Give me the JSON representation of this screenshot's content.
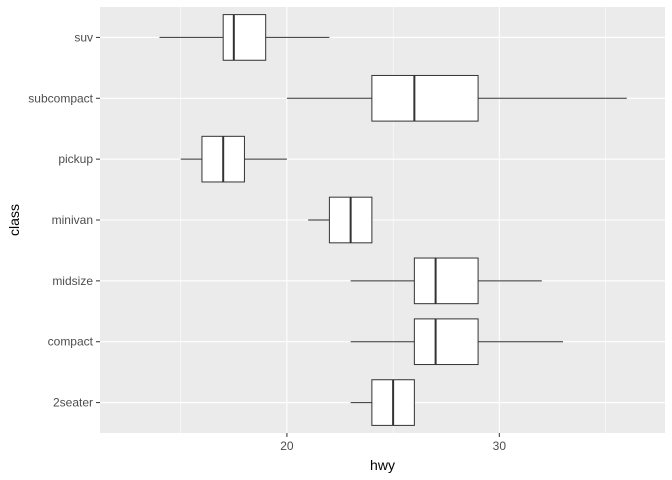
{
  "chart_data": {
    "type": "boxplot",
    "orientation": "horizontal",
    "xlabel": "hwy",
    "ylabel": "class",
    "xlim": [
      11.2,
      37.8
    ],
    "x_ticks": [
      20,
      30
    ],
    "x_minor_ticks": [
      15,
      25,
      35
    ],
    "grid": true,
    "categories": [
      "2seater",
      "compact",
      "midsize",
      "minivan",
      "pickup",
      "subcompact",
      "suv"
    ],
    "boxes": [
      {
        "category": "2seater",
        "min": 23,
        "q1": 24,
        "median": 25,
        "q3": 26,
        "max": 26
      },
      {
        "category": "compact",
        "min": 23,
        "q1": 26,
        "median": 27,
        "q3": 29,
        "max": 33
      },
      {
        "category": "midsize",
        "min": 23,
        "q1": 26,
        "median": 27,
        "q3": 29,
        "max": 32
      },
      {
        "category": "minivan",
        "min": 21,
        "q1": 22,
        "median": 23,
        "q3": 24,
        "max": 24
      },
      {
        "category": "pickup",
        "min": 15,
        "q1": 16,
        "median": 17,
        "q3": 18,
        "max": 20
      },
      {
        "category": "subcompact",
        "min": 20,
        "q1": 24,
        "median": 26,
        "q3": 29,
        "max": 36
      },
      {
        "category": "suv",
        "min": 14,
        "q1": 17,
        "median": 17.5,
        "q3": 19,
        "max": 22
      }
    ],
    "colors": {
      "panel": "#ebebeb",
      "grid_major": "#ffffff",
      "box_fill": "#ffffff",
      "box_stroke": "#333333"
    }
  }
}
